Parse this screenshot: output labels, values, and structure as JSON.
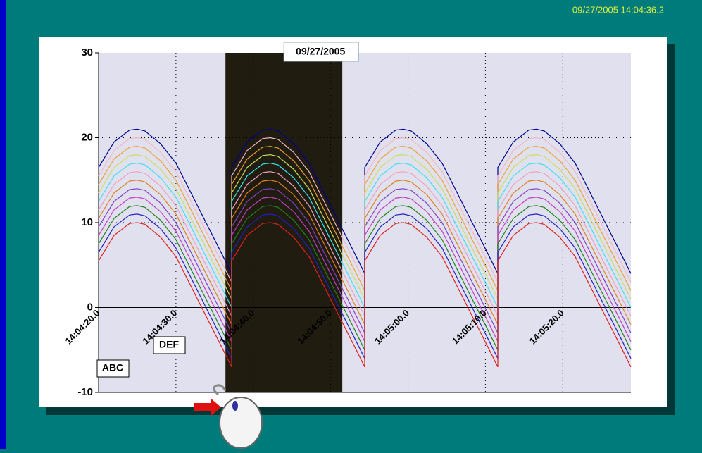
{
  "timestamp": "09/27/2005 14:04:36.2",
  "annotations": [
    "ABC",
    "DEF"
  ],
  "chart_data": {
    "type": "line",
    "highlight": {
      "xlim": [
        36.4,
        51.5
      ],
      "label": "09/27/2005"
    },
    "xlim": [
      20,
      88.8
    ],
    "xticks": [
      {
        "value": 20,
        "label": "14:04:20.0"
      },
      {
        "value": 30,
        "label": "14:04:30.0"
      },
      {
        "value": 40,
        "label": "14:04:40.0"
      },
      {
        "value": 50,
        "label": "14:04:50.0"
      },
      {
        "value": 60,
        "label": "14:05:00.0"
      },
      {
        "value": 70,
        "label": "14:05:10.0"
      },
      {
        "value": 80,
        "label": "14:05:20.0"
      }
    ],
    "ylim": [
      -10,
      30
    ],
    "yticks": [
      -10,
      0,
      10,
      20,
      30
    ],
    "grid": true,
    "x": [
      20,
      22,
      24,
      25,
      26,
      28,
      30,
      32,
      34,
      36,
      37.2,
      37.2,
      39.2,
      41.2,
      42.2,
      43.2,
      45.2,
      47.2,
      49.2,
      51.2,
      53.2,
      54.4,
      54.4,
      56.4,
      58.4,
      59.4,
      60.4,
      62.4,
      64.4,
      66.4,
      68.4,
      70.4,
      71.6,
      71.6,
      73.6,
      75.6,
      76.6,
      77.6,
      79.6,
      81.6,
      83.6,
      85.6,
      87.6,
      88.8
    ],
    "series": [
      {
        "color": "#00008b",
        "values": [
          16.5,
          19.5,
          20.9,
          21,
          20.8,
          19.3,
          17,
          13.4,
          9.8,
          6.2,
          4,
          16.5,
          19.5,
          20.9,
          21,
          20.8,
          19.3,
          17,
          13.4,
          9.8,
          6.2,
          4,
          16.5,
          19.5,
          20.9,
          21,
          20.8,
          19.3,
          17,
          13.4,
          9.8,
          6.2,
          4,
          16.5,
          19.5,
          20.9,
          21,
          20.8,
          19.3,
          17,
          13.4,
          9.8,
          6.2,
          4
        ]
      },
      {
        "color": "#f4b6c2",
        "values": [
          15.5,
          18.5,
          19.9,
          20,
          19.8,
          18.3,
          16,
          12.4,
          8.8,
          5.2,
          3,
          15.5,
          18.5,
          19.9,
          20,
          19.8,
          18.3,
          16,
          12.4,
          8.8,
          5.2,
          3,
          15.5,
          18.5,
          19.9,
          20,
          19.8,
          18.3,
          16,
          12.4,
          8.8,
          5.2,
          3,
          15.5,
          18.5,
          19.9,
          20,
          19.8,
          18.3,
          16,
          12.4,
          8.8,
          5.2,
          3
        ]
      },
      {
        "color": "#f0a030",
        "values": [
          14.5,
          17.5,
          18.9,
          19,
          18.8,
          17.3,
          15,
          11.4,
          7.8,
          4.2,
          2,
          14.5,
          17.5,
          18.9,
          19,
          18.8,
          17.3,
          15,
          11.4,
          7.8,
          4.2,
          2,
          14.5,
          17.5,
          18.9,
          19,
          18.8,
          17.3,
          15,
          11.4,
          7.8,
          4.2,
          2,
          14.5,
          17.5,
          18.9,
          19,
          18.8,
          17.3,
          15,
          11.4,
          7.8,
          4.2,
          2
        ]
      },
      {
        "color": "#c8e060",
        "values": [
          13.5,
          16.5,
          17.9,
          18,
          17.8,
          16.3,
          14,
          10.4,
          6.8,
          3.2,
          1,
          13.5,
          16.5,
          17.9,
          18,
          17.8,
          16.3,
          14,
          10.4,
          6.8,
          3.2,
          1,
          13.5,
          16.5,
          17.9,
          18,
          17.8,
          16.3,
          14,
          10.4,
          6.8,
          3.2,
          1,
          13.5,
          16.5,
          17.9,
          18,
          17.8,
          16.3,
          14,
          10.4,
          6.8,
          3.2,
          1
        ]
      },
      {
        "color": "#40e0f0",
        "values": [
          12.5,
          15.5,
          16.9,
          17,
          16.8,
          15.3,
          13,
          9.4,
          5.8,
          2.2,
          0,
          12.5,
          15.5,
          16.9,
          17,
          16.8,
          15.3,
          13,
          9.4,
          5.8,
          2.2,
          0,
          12.5,
          15.5,
          16.9,
          17,
          16.8,
          15.3,
          13,
          9.4,
          5.8,
          2.2,
          0,
          12.5,
          15.5,
          16.9,
          17,
          16.8,
          15.3,
          13,
          9.4,
          5.8,
          2.2,
          0
        ]
      },
      {
        "color": "#f0a0c0",
        "values": [
          11.5,
          14.5,
          15.9,
          16,
          15.8,
          14.3,
          12,
          8.4,
          4.8,
          1.2,
          -1,
          11.5,
          14.5,
          15.9,
          16,
          15.8,
          14.3,
          12,
          8.4,
          4.8,
          1.2,
          -1,
          11.5,
          14.5,
          15.9,
          16,
          15.8,
          14.3,
          12,
          8.4,
          4.8,
          1.2,
          -1,
          11.5,
          14.5,
          15.9,
          16,
          15.8,
          14.3,
          12,
          8.4,
          4.8,
          1.2,
          -1
        ]
      },
      {
        "color": "#e08020",
        "values": [
          10.5,
          13.5,
          14.9,
          15,
          14.8,
          13.3,
          11,
          7.4,
          3.8,
          0.2,
          -2,
          10.5,
          13.5,
          14.9,
          15,
          14.8,
          13.3,
          11,
          7.4,
          3.8,
          0.2,
          -2,
          10.5,
          13.5,
          14.9,
          15,
          14.8,
          13.3,
          11,
          7.4,
          3.8,
          0.2,
          -2,
          10.5,
          13.5,
          14.9,
          15,
          14.8,
          13.3,
          11,
          7.4,
          3.8,
          0.2,
          -2
        ]
      },
      {
        "color": "#8040c0",
        "values": [
          9.5,
          12.5,
          13.9,
          14,
          13.8,
          12.3,
          10,
          6.4,
          2.8,
          -0.8,
          -3,
          9.5,
          12.5,
          13.9,
          14,
          13.8,
          12.3,
          10,
          6.4,
          2.8,
          -0.8,
          -3,
          9.5,
          12.5,
          13.9,
          14,
          13.8,
          12.3,
          10,
          6.4,
          2.8,
          -0.8,
          -3,
          9.5,
          12.5,
          13.9,
          14,
          13.8,
          12.3,
          10,
          6.4,
          2.8,
          -0.8,
          -3
        ]
      },
      {
        "color": "#c040c0",
        "values": [
          8.5,
          11.5,
          12.9,
          13,
          12.8,
          11.3,
          9,
          5.4,
          1.8,
          -1.8,
          -4,
          8.5,
          11.5,
          12.9,
          13,
          12.8,
          11.3,
          9,
          5.4,
          1.8,
          -1.8,
          -4,
          8.5,
          11.5,
          12.9,
          13,
          12.8,
          11.3,
          9,
          5.4,
          1.8,
          -1.8,
          -4,
          8.5,
          11.5,
          12.9,
          13,
          12.8,
          11.3,
          9,
          5.4,
          1.8,
          -1.8,
          -4
        ]
      },
      {
        "color": "#208020",
        "values": [
          7.5,
          10.5,
          11.9,
          12,
          11.8,
          10.3,
          8,
          4.4,
          0.8,
          -2.8,
          -5,
          7.5,
          10.5,
          11.9,
          12,
          11.8,
          10.3,
          8,
          4.4,
          0.8,
          -2.8,
          -5,
          7.5,
          10.5,
          11.9,
          12,
          11.8,
          10.3,
          8,
          4.4,
          0.8,
          -2.8,
          -5,
          7.5,
          10.5,
          11.9,
          12,
          11.8,
          10.3,
          8,
          4.4,
          0.8,
          -2.8,
          -5
        ]
      },
      {
        "color": "#2020c0",
        "values": [
          6.5,
          9.5,
          10.9,
          11,
          10.8,
          9.3,
          7,
          3.4,
          -0.2,
          -3.8,
          -6,
          6.5,
          9.5,
          10.9,
          11,
          10.8,
          9.3,
          7,
          3.4,
          -0.2,
          -3.8,
          -6,
          6.5,
          9.5,
          10.9,
          11,
          10.8,
          9.3,
          7,
          3.4,
          -0.2,
          -3.8,
          -6,
          6.5,
          9.5,
          10.9,
          11,
          10.8,
          9.3,
          7,
          3.4,
          -0.2,
          -3.8,
          -6
        ]
      },
      {
        "color": "#e02020",
        "values": [
          5.5,
          8.5,
          9.9,
          10,
          9.8,
          8.3,
          6,
          2.4,
          -1.2,
          -4.8,
          -7,
          5.5,
          8.5,
          9.9,
          10,
          9.8,
          8.3,
          6,
          2.4,
          -1.2,
          -4.8,
          -7,
          5.5,
          8.5,
          9.9,
          10,
          9.8,
          8.3,
          6,
          2.4,
          -1.2,
          -4.8,
          -7,
          5.5,
          8.5,
          9.9,
          10,
          9.8,
          8.3,
          6,
          2.4,
          -1.2,
          -4.8,
          -7
        ]
      }
    ]
  }
}
